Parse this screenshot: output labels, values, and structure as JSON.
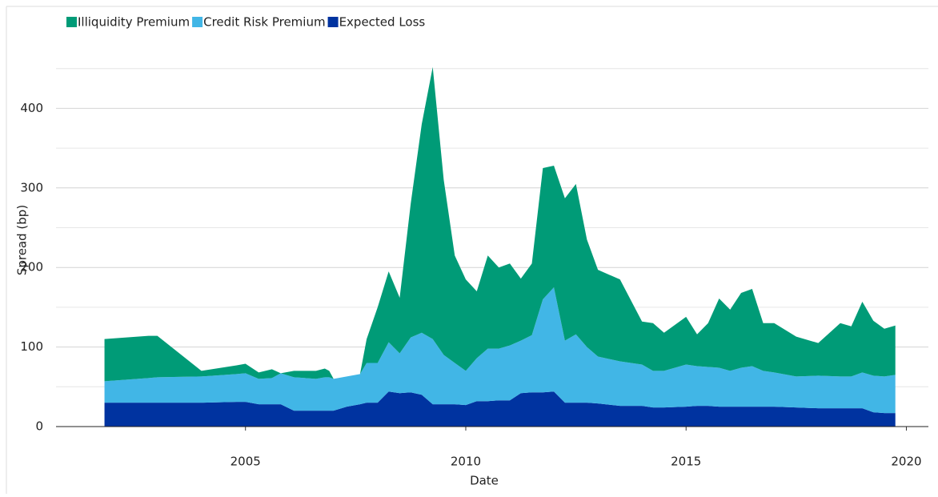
{
  "chart_data": {
    "type": "stacked_area",
    "xlabel": "Date",
    "ylabel": "Spread (bp)",
    "x": [
      2001.8,
      2002.8,
      2003.0,
      2004.0,
      2004.8,
      2005.0,
      2005.3,
      2005.6,
      2005.8,
      2006.1,
      2006.6,
      2006.8,
      2006.9,
      2007.0,
      2007.3,
      2007.6,
      2007.75,
      2008.0,
      2008.25,
      2008.5,
      2008.75,
      2009.0,
      2009.25,
      2009.5,
      2009.75,
      2010.0,
      2010.25,
      2010.5,
      2010.75,
      2011.0,
      2011.25,
      2011.5,
      2011.75,
      2012.0,
      2012.25,
      2012.5,
      2012.75,
      2013.0,
      2013.5,
      2014.0,
      2014.25,
      2014.5,
      2015.0,
      2015.25,
      2015.5,
      2015.75,
      2016.0,
      2016.25,
      2016.5,
      2016.75,
      2017.0,
      2017.5,
      2018.0,
      2018.5,
      2018.75,
      2019.0,
      2019.25,
      2019.5,
      2019.75
    ],
    "series": [
      {
        "name": "Illiquidity Premium",
        "color": "#009b77",
        "values": [
          53,
          53,
          52,
          7,
          11,
          12,
          8,
          11,
          0,
          8,
          10,
          11,
          8,
          0,
          0,
          0,
          30,
          70,
          89,
          70,
          168,
          262,
          342,
          220,
          135,
          115,
          84,
          117,
          102,
          103,
          78,
          90,
          165,
          153,
          179,
          189,
          135,
          109,
          103,
          54,
          60,
          48,
          60,
          40,
          55,
          87,
          77,
          94,
          97,
          60,
          62,
          50,
          41,
          67,
          63,
          89,
          69,
          60,
          62
        ]
      },
      {
        "name": "Credit Risk Premium",
        "color": "#41b6e6",
        "values": [
          27,
          31,
          32,
          33,
          35,
          36,
          32,
          33,
          39,
          42,
          40,
          42,
          42,
          40,
          38,
          38,
          50,
          50,
          62,
          50,
          69,
          78,
          82,
          62,
          52,
          43,
          54,
          66,
          65,
          69,
          66,
          72,
          117,
          131,
          78,
          86,
          70,
          59,
          56,
          52,
          46,
          46,
          53,
          50,
          49,
          49,
          45,
          49,
          51,
          45,
          43,
          39,
          41,
          40,
          40,
          45,
          46,
          46,
          48
        ]
      },
      {
        "name": "Expected Loss",
        "color": "#0033a0",
        "values": [
          30,
          30,
          30,
          30,
          31,
          31,
          28,
          28,
          28,
          20,
          20,
          20,
          20,
          20,
          25,
          28,
          30,
          30,
          44,
          42,
          43,
          40,
          28,
          28,
          28,
          27,
          32,
          32,
          33,
          33,
          42,
          43,
          43,
          44,
          30,
          30,
          30,
          29,
          26,
          26,
          24,
          24,
          25,
          26,
          26,
          25,
          25,
          25,
          25,
          25,
          25,
          24,
          23,
          23,
          23,
          23,
          18,
          17,
          17
        ]
      }
    ],
    "xlim": [
      2000.7,
      2020.5
    ],
    "xticks": [
      2005,
      2010,
      2015,
      2020
    ],
    "ylim": [
      0,
      500
    ],
    "yticks": [
      0,
      100,
      200,
      300,
      400
    ],
    "minor_yticks": [
      50,
      150,
      250,
      350,
      450
    ],
    "grid": true,
    "legend": "top-left"
  }
}
